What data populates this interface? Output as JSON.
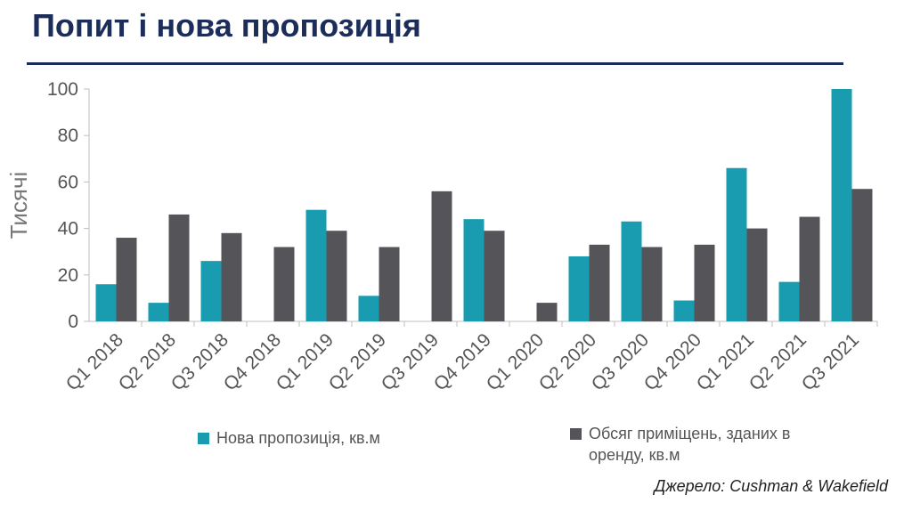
{
  "title": "Попит і нова пропозиція",
  "source": "Джерело: Cushman & Wakefield",
  "colors": {
    "title": "#1c2d5a",
    "series_new": "#1a9cb0",
    "series_leased": "#545459"
  },
  "chart_data": {
    "type": "bar",
    "title": "",
    "xlabel": "",
    "ylabel": "Тисячі",
    "ylim": [
      0,
      100
    ],
    "yticks": [
      0,
      20,
      40,
      60,
      80,
      100
    ],
    "grid": false,
    "legend_position": "bottom",
    "categories": [
      "Q1 2018",
      "Q2 2018",
      "Q3 2018",
      "Q4 2018",
      "Q1 2019",
      "Q2 2019",
      "Q3 2019",
      "Q4 2019",
      "Q1 2020",
      "Q2 2020",
      "Q3 2020",
      "Q4 2020",
      "Q1 2021",
      "Q2 2021",
      "Q3 2021"
    ],
    "series": [
      {
        "name": "Нова пропозиція, кв.м",
        "color": "#1a9cb0",
        "values": [
          16,
          8,
          26,
          0,
          48,
          11,
          0,
          44,
          0,
          28,
          43,
          9,
          66,
          17,
          100
        ]
      },
      {
        "name": "Обсяг приміщень, зданих в оренду,  кв.м",
        "color": "#545459",
        "values": [
          36,
          46,
          38,
          32,
          39,
          32,
          56,
          39,
          8,
          33,
          32,
          33,
          40,
          45,
          57
        ]
      }
    ]
  }
}
